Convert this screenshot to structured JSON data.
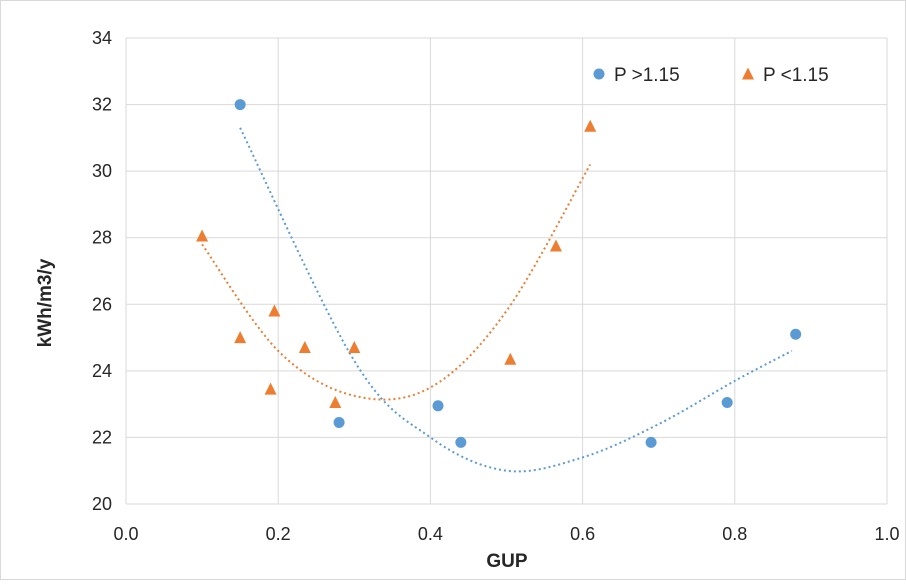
{
  "chart_data": {
    "type": "scatter",
    "title": "",
    "xlabel": "GUP",
    "ylabel": "kWh/m3/y",
    "xlim": [
      0.0,
      1.0
    ],
    "ylim": [
      20,
      34
    ],
    "x_ticks": [
      0.0,
      0.2,
      0.4,
      0.6,
      0.8,
      1.0
    ],
    "x_tick_labels": [
      "0.0",
      "0.2",
      "0.4",
      "0.6",
      "0.8",
      "1.0"
    ],
    "y_ticks": [
      20,
      22,
      24,
      26,
      28,
      30,
      32,
      34
    ],
    "y_tick_labels": [
      "20",
      "22",
      "24",
      "26",
      "28",
      "30",
      "32",
      "34"
    ],
    "grid": true,
    "legend_position": "top-right",
    "series": [
      {
        "name": "P >1.15",
        "marker": "circle",
        "color": "#5b9bd5",
        "points": [
          [
            0.15,
            32.0
          ],
          [
            0.28,
            22.45
          ],
          [
            0.41,
            22.95
          ],
          [
            0.44,
            21.85
          ],
          [
            0.69,
            21.85
          ],
          [
            0.79,
            23.05
          ],
          [
            0.88,
            25.1
          ]
        ],
        "trendline": {
          "type": "polynomial",
          "order": 2,
          "x_range": [
            0.15,
            0.875
          ],
          "style": "dotted",
          "approx_points": [
            [
              0.15,
              31.3
            ],
            [
              0.3,
              24.3
            ],
            [
              0.4,
              22.0
            ],
            [
              0.5,
              21.0
            ],
            [
              0.6,
              21.4
            ],
            [
              0.7,
              22.4
            ],
            [
              0.8,
              23.7
            ],
            [
              0.875,
              24.6
            ]
          ]
        }
      },
      {
        "name": "P <1.15",
        "marker": "triangle",
        "color": "#ed7d31",
        "points": [
          [
            0.1,
            28.05
          ],
          [
            0.15,
            25.0
          ],
          [
            0.19,
            23.45
          ],
          [
            0.195,
            25.8
          ],
          [
            0.235,
            24.7
          ],
          [
            0.275,
            23.05
          ],
          [
            0.3,
            24.7
          ],
          [
            0.505,
            24.35
          ],
          [
            0.565,
            27.75
          ],
          [
            0.61,
            31.35
          ]
        ],
        "trendline": {
          "type": "polynomial",
          "order": 2,
          "x_range": [
            0.1,
            0.61
          ],
          "style": "dotted",
          "approx_points": [
            [
              0.1,
              27.8
            ],
            [
              0.2,
              24.6
            ],
            [
              0.3,
              23.25
            ],
            [
              0.4,
              23.5
            ],
            [
              0.5,
              25.8
            ],
            [
              0.61,
              30.2
            ]
          ]
        }
      }
    ]
  }
}
